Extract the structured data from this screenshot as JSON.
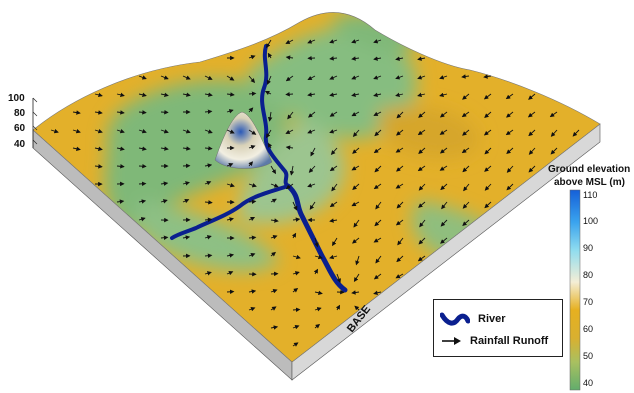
{
  "figure": {
    "z_axis_ticks": [
      "100",
      "80",
      "60",
      "40"
    ],
    "base_label": "BASE"
  },
  "colorbar": {
    "title_line1": "Ground elevation",
    "title_line2": "above MSL (m)",
    "ticks": [
      "110",
      "100",
      "90",
      "80",
      "70",
      "60",
      "50",
      "40"
    ],
    "colors": {
      "high": "#1560d8",
      "upper": "#7fd3ee",
      "mid_high": "#f4eed6",
      "mid": "#e6b020",
      "low_mid": "#bfbf48",
      "low": "#6cb36e"
    }
  },
  "legend": {
    "river_label": "River",
    "runoff_label": "Rainfall Runoff",
    "river_color": "#0a1f8f"
  },
  "terrain_colors": {
    "yellow": "#e3b02a",
    "green": "#7fb878",
    "light_green": "#a7c795",
    "side": "#c9c9c9"
  }
}
